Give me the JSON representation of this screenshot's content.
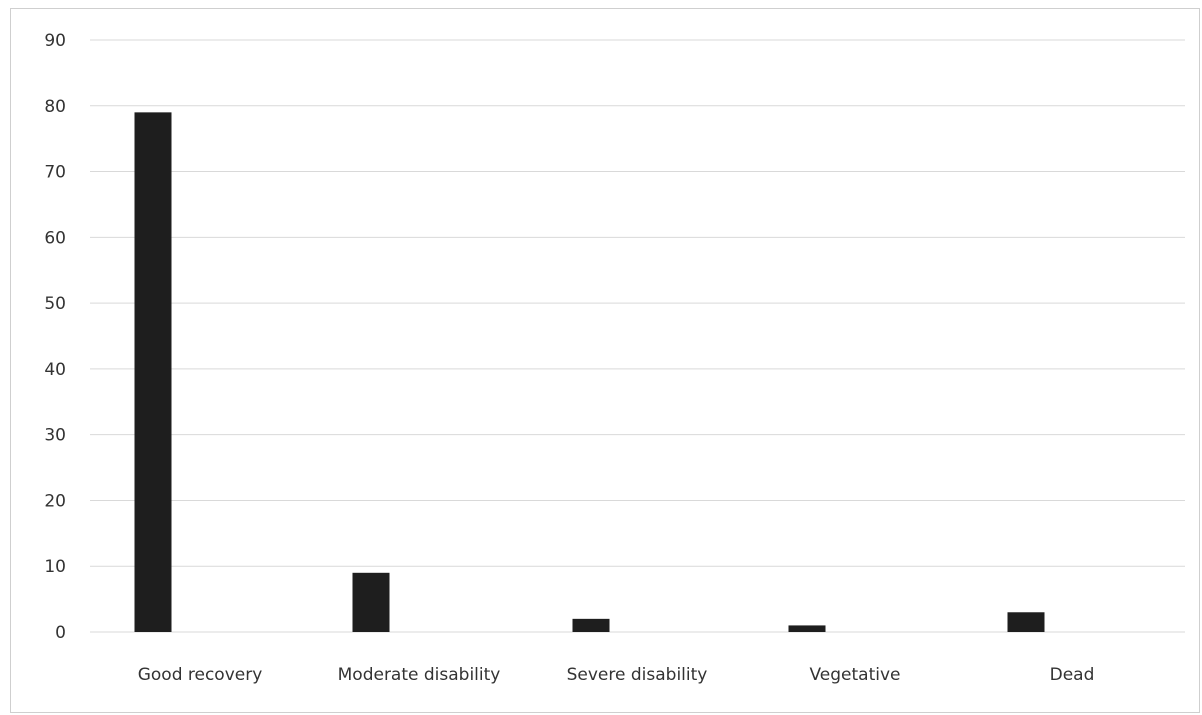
{
  "chart_data": {
    "type": "bar",
    "categories": [
      "Good recovery",
      "Moderate disability",
      "Severe disability",
      "Vegetative",
      "Dead"
    ],
    "values": [
      79,
      9,
      2,
      1,
      3
    ],
    "title": "",
    "xlabel": "",
    "ylabel": "",
    "ylim": [
      0,
      90
    ],
    "yticks": [
      "0",
      "10",
      "20",
      "30",
      "40",
      "50",
      "60",
      "70",
      "80",
      "90"
    ],
    "grid": true,
    "legend": "none",
    "bar_color": "#1e1e1e",
    "grid_color": "#d9d9d9"
  }
}
